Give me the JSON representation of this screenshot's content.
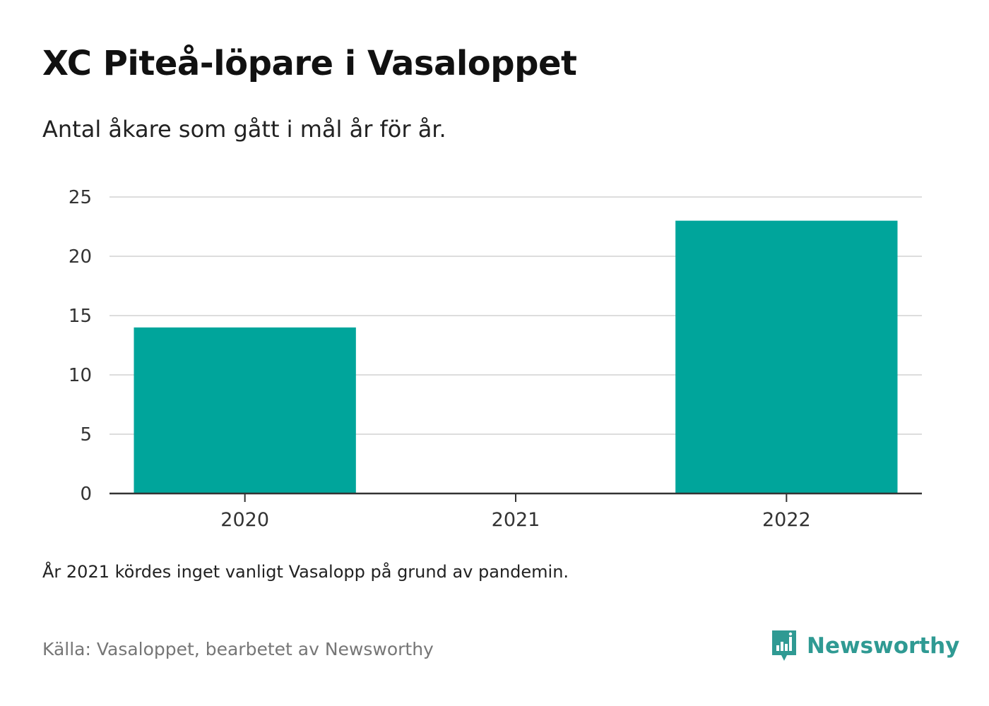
{
  "title": "XC Piteå-löpare i Vasaloppet",
  "subtitle": "Antal åkare som gått i mål år för år.",
  "note": "År 2021 kördes inget vanligt Vasalopp på grund av pandemin.",
  "source": "Källa: Vasaloppet, bearbetet av Newsworthy",
  "brand": {
    "name": "Newsworthy",
    "icon": "newsworthy-logo-icon"
  },
  "colors": {
    "bar": "#00A59B",
    "grid": "#dddddd",
    "axis": "#333333",
    "brand": "#2f9a93"
  },
  "chart_data": {
    "type": "bar",
    "categories": [
      "2020",
      "2021",
      "2022"
    ],
    "values": [
      14,
      0,
      23
    ],
    "ylim": [
      0,
      25
    ],
    "yticks": [
      0,
      5,
      10,
      15,
      20,
      25
    ],
    "xlabel": "",
    "ylabel": "",
    "grid": true,
    "legend": "none"
  }
}
